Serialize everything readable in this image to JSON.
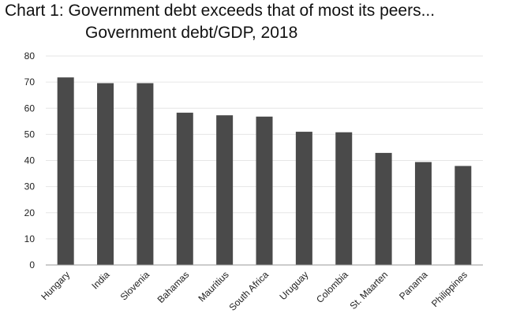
{
  "chart_data": {
    "type": "bar",
    "title": "Chart 1:  Government debt exceeds that of most its peers...",
    "subtitle": "Government debt/GDP, 2018",
    "categories": [
      "Hungary",
      "India",
      "Slovenia",
      "Bahamas",
      "Mauritius",
      "South Africa",
      "Uruguay",
      "Colombia",
      "St. Maarten",
      "Panama",
      "Philippines"
    ],
    "values": [
      71.8,
      69.6,
      69.6,
      58.3,
      57.3,
      56.8,
      51.0,
      50.8,
      42.9,
      39.4,
      37.9
    ],
    "ylim": [
      0,
      80
    ],
    "yticks": [
      0,
      10,
      20,
      30,
      40,
      50,
      60,
      70,
      80
    ],
    "xlabel": "",
    "ylabel": "",
    "grid": true,
    "colors": {
      "bar": "#4a4a4a",
      "grid": "#e6e6e6",
      "axis": "#999999"
    }
  }
}
